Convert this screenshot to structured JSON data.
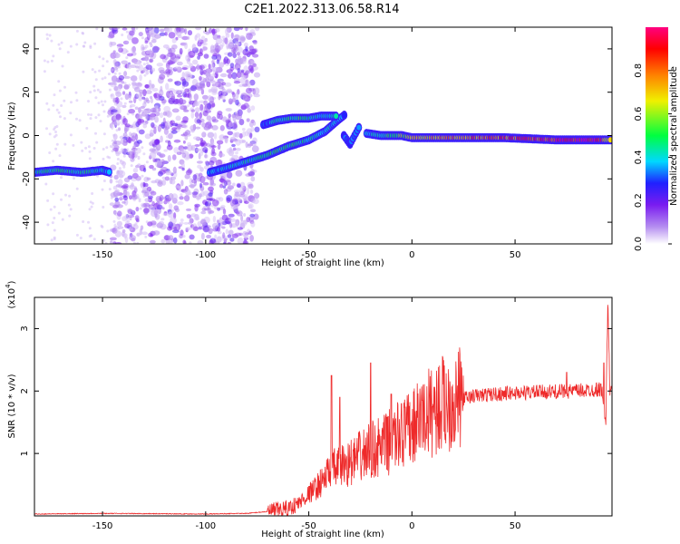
{
  "title": "C2E1.2022.313.06.58.R14",
  "colorbar": {
    "label": "Normalized spectral amplitude",
    "ticks": [
      0.0,
      0.2,
      0.4,
      0.6,
      0.8
    ],
    "tick_labels": [
      "0.0",
      "0.2",
      "0.4",
      "0.6",
      "0.8"
    ],
    "colors": [
      "#ffffff",
      "#b48cf0",
      "#7a1cf0",
      "#2020ff",
      "#00d8ff",
      "#00ff40",
      "#f0f000",
      "#ff8000",
      "#ff0000",
      "#ff0080"
    ]
  },
  "chart_data": [
    {
      "type": "heatmap",
      "xlabel": "Height of straight line (km)",
      "ylabel": "Frequency (Hz)",
      "xlim": [
        -183,
        97
      ],
      "ylim": [
        -50,
        50
      ],
      "xticks": [
        -150,
        -100,
        -50,
        0,
        50
      ],
      "yticks": [
        -40,
        -20,
        0,
        20,
        40
      ],
      "trace": [
        {
          "x": -183,
          "y": -17,
          "a": 0.42
        },
        {
          "x": -172,
          "y": -16,
          "a": 0.45
        },
        {
          "x": -160,
          "y": -17,
          "a": 0.48
        },
        {
          "x": -150,
          "y": -16,
          "a": 0.4
        },
        {
          "x": -146,
          "y": -17,
          "a": 0.35
        },
        {
          "x": -98,
          "y": -17,
          "a": 0.35
        },
        {
          "x": -90,
          "y": -15,
          "a": 0.38
        },
        {
          "x": -80,
          "y": -12,
          "a": 0.42
        },
        {
          "x": -70,
          "y": -9,
          "a": 0.46
        },
        {
          "x": -60,
          "y": -5,
          "a": 0.48
        },
        {
          "x": -50,
          "y": -2,
          "a": 0.42
        },
        {
          "x": -42,
          "y": 2,
          "a": 0.4
        },
        {
          "x": -36,
          "y": 7,
          "a": 0.36
        },
        {
          "x": -32,
          "y": 10,
          "a": 0.32
        },
        {
          "x": -72,
          "y": 5,
          "a": 0.3
        },
        {
          "x": -65,
          "y": 7,
          "a": 0.42
        },
        {
          "x": -58,
          "y": 8,
          "a": 0.5
        },
        {
          "x": -50,
          "y": 8,
          "a": 0.45
        },
        {
          "x": -44,
          "y": 9,
          "a": 0.4
        },
        {
          "x": -36,
          "y": 9,
          "a": 0.38
        },
        {
          "x": -33,
          "y": 0,
          "a": 0.3
        },
        {
          "x": -30,
          "y": -4,
          "a": 0.3
        },
        {
          "x": -25,
          "y": 5,
          "a": 0.35
        },
        {
          "x": -22,
          "y": 1,
          "a": 0.4
        },
        {
          "x": -15,
          "y": 0,
          "a": 0.45
        },
        {
          "x": -5,
          "y": 0,
          "a": 0.55
        },
        {
          "x": 0,
          "y": -1,
          "a": 0.65
        },
        {
          "x": 20,
          "y": -1,
          "a": 0.75
        },
        {
          "x": 45,
          "y": -1,
          "a": 0.8
        },
        {
          "x": 70,
          "y": -2,
          "a": 0.9
        },
        {
          "x": 90,
          "y": -2,
          "a": 0.95
        },
        {
          "x": 97,
          "y": -2,
          "a": 0.6
        }
      ],
      "noise_band": [
        -146,
        -75
      ]
    },
    {
      "type": "line",
      "xlabel": "Height of straight line (km)",
      "ylabel": "SNR (10 * v/v)",
      "y_multiplier": "(x10",
      "y_multiplier_exp": "4",
      "xlim": [
        -183,
        97
      ],
      "ylim": [
        0,
        3.5
      ],
      "xticks": [
        -150,
        -100,
        -50,
        0,
        50
      ],
      "yticks": [
        1,
        2,
        3
      ],
      "color": "#ee2a2a",
      "series": [
        {
          "envelope_x": [
            -183,
            -150,
            -100,
            -80,
            -70,
            -60,
            -55,
            -50,
            -45,
            -40,
            -35,
            -30,
            -25,
            -20,
            -15,
            -10,
            -5,
            0,
            5,
            10,
            15,
            20,
            25,
            30,
            40,
            50,
            60,
            70,
            80,
            88,
            92,
            94,
            95,
            96,
            97
          ],
          "envelope_y": [
            0.03,
            0.04,
            0.03,
            0.04,
            0.07,
            0.12,
            0.2,
            0.35,
            0.5,
            0.7,
            0.8,
            0.85,
            0.95,
            1.05,
            1.1,
            1.2,
            1.3,
            1.4,
            1.55,
            1.7,
            1.8,
            1.85,
            1.88,
            1.92,
            1.95,
            1.97,
            1.98,
            1.99,
            2.0,
            2.02,
            2.03,
            1.5,
            3.4,
            2.0,
            1.95
          ]
        }
      ],
      "spikes": [
        {
          "x": -39,
          "y": 2.25
        },
        {
          "x": -35,
          "y": 1.9
        },
        {
          "x": -20,
          "y": 2.45
        },
        {
          "x": -10,
          "y": 1.95
        },
        {
          "x": -5,
          "y": 1.8
        },
        {
          "x": 5,
          "y": 1.85
        },
        {
          "x": 10,
          "y": 1.75
        },
        {
          "x": 75,
          "y": 2.3
        },
        {
          "x": 93,
          "y": 2.45
        }
      ]
    }
  ]
}
